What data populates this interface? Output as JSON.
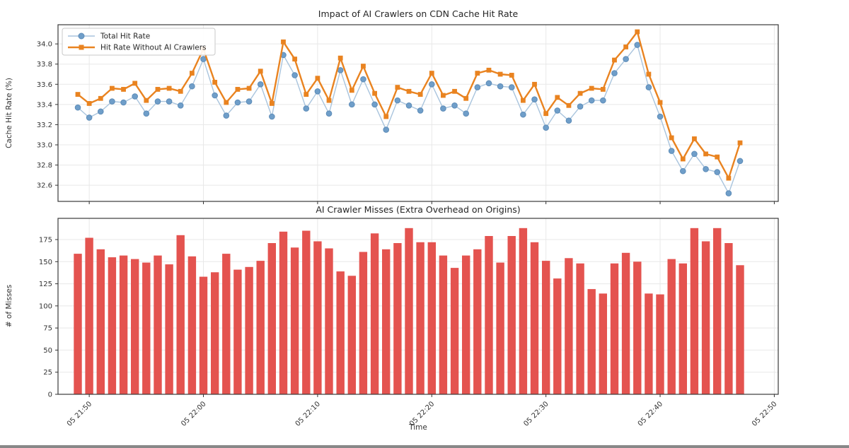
{
  "figure": {
    "colors": {
      "total_line": "#a9c4dd",
      "total_marker": "#6f9ec9",
      "without_line": "#e98320",
      "bar": "#e4534f",
      "grid": "#e8e8e8",
      "spine": "#3a3a3a",
      "tick": "#333333"
    }
  },
  "chart_data": [
    {
      "type": "line",
      "title": "Impact of AI Crawlers on CDN Cache Hit Rate",
      "ylabel": "Cache Hit Rate (%)",
      "grid": true,
      "legend_position": "upper-left",
      "ylim": [
        32.44,
        34.19
      ],
      "yticks": [
        34.0,
        33.8,
        33.6,
        33.4,
        33.2,
        33.0,
        32.8,
        32.6
      ],
      "xtick_labels": [
        "05 21:50",
        "05 22:00",
        "05 22:10",
        "05 22:20",
        "05 22:30",
        "05 22:40",
        "05 22:50"
      ],
      "xtick_minute_index": [
        1,
        11,
        21,
        31,
        41,
        51,
        61
      ],
      "x_times": [
        "05 21:49",
        "05 21:50",
        "05 21:51",
        "05 21:52",
        "05 21:53",
        "05 21:54",
        "05 21:55",
        "05 21:56",
        "05 21:57",
        "05 21:58",
        "05 21:59",
        "05 22:00",
        "05 22:01",
        "05 22:02",
        "05 22:03",
        "05 22:04",
        "05 22:05",
        "05 22:06",
        "05 22:07",
        "05 22:08",
        "05 22:09",
        "05 22:10",
        "05 22:11",
        "05 22:12",
        "05 22:13",
        "05 22:14",
        "05 22:15",
        "05 22:16",
        "05 22:17",
        "05 22:18",
        "05 22:19",
        "05 22:20",
        "05 22:21",
        "05 22:22",
        "05 22:23",
        "05 22:24",
        "05 22:25",
        "05 22:26",
        "05 22:27",
        "05 22:28",
        "05 22:29",
        "05 22:30",
        "05 22:31",
        "05 22:32",
        "05 22:33",
        "05 22:34",
        "05 22:35",
        "05 22:36",
        "05 22:37",
        "05 22:38",
        "05 22:39",
        "05 22:40",
        "05 22:41",
        "05 22:42",
        "05 22:43",
        "05 22:44",
        "05 22:45",
        "05 22:46",
        "05 22:47"
      ],
      "series": [
        {
          "name": "Total Hit Rate",
          "marker": "circle",
          "values": [
            33.37,
            33.27,
            33.33,
            33.43,
            33.42,
            33.48,
            33.31,
            33.43,
            33.43,
            33.39,
            33.58,
            33.85,
            33.49,
            33.29,
            33.42,
            33.43,
            33.6,
            33.28,
            33.89,
            33.69,
            33.36,
            33.53,
            33.31,
            33.74,
            33.4,
            33.65,
            33.4,
            33.15,
            33.44,
            33.39,
            33.34,
            33.6,
            33.36,
            33.39,
            33.31,
            33.57,
            33.61,
            33.58,
            33.57,
            33.3,
            33.45,
            33.17,
            33.34,
            33.24,
            33.38,
            33.44,
            33.44,
            33.71,
            33.85,
            33.99,
            33.57,
            33.28,
            32.94,
            32.74,
            32.91,
            32.76,
            32.73,
            32.52,
            32.84
          ]
        },
        {
          "name": "Hit Rate Without AI Crawlers",
          "marker": "square",
          "values": [
            33.5,
            33.41,
            33.46,
            33.56,
            33.55,
            33.61,
            33.44,
            33.55,
            33.56,
            33.53,
            33.71,
            33.95,
            33.62,
            33.42,
            33.55,
            33.56,
            33.73,
            33.41,
            34.02,
            33.85,
            33.5,
            33.66,
            33.44,
            33.86,
            33.54,
            33.78,
            33.51,
            33.28,
            33.57,
            33.53,
            33.5,
            33.71,
            33.49,
            33.53,
            33.46,
            33.71,
            33.74,
            33.7,
            33.69,
            33.44,
            33.6,
            33.31,
            33.47,
            33.39,
            33.51,
            33.56,
            33.55,
            33.84,
            33.97,
            34.12,
            33.7,
            33.42,
            33.07,
            32.86,
            33.06,
            32.91,
            32.88,
            32.67,
            33.02
          ]
        }
      ]
    },
    {
      "type": "bar",
      "title": "AI Crawler Misses (Extra Overhead on Origins)",
      "ylabel": "# of Misses",
      "xlabel": "Time",
      "grid": true,
      "ylim": [
        0,
        199
      ],
      "yticks": [
        0,
        25,
        50,
        75,
        100,
        125,
        150,
        175
      ],
      "xtick_labels": [
        "05 21:50",
        "05 22:00",
        "05 22:10",
        "05 22:20",
        "05 22:30",
        "05 22:40",
        "05 22:50"
      ],
      "xtick_minute_index": [
        1,
        11,
        21,
        31,
        41,
        51,
        61
      ],
      "x_times": [
        "05 21:49",
        "05 21:50",
        "05 21:51",
        "05 21:52",
        "05 21:53",
        "05 21:54",
        "05 21:55",
        "05 21:56",
        "05 21:57",
        "05 21:58",
        "05 21:59",
        "05 22:00",
        "05 22:01",
        "05 22:02",
        "05 22:03",
        "05 22:04",
        "05 22:05",
        "05 22:06",
        "05 22:07",
        "05 22:08",
        "05 22:09",
        "05 22:10",
        "05 22:11",
        "05 22:12",
        "05 22:13",
        "05 22:14",
        "05 22:15",
        "05 22:16",
        "05 22:17",
        "05 22:18",
        "05 22:19",
        "05 22:20",
        "05 22:21",
        "05 22:22",
        "05 22:23",
        "05 22:24",
        "05 22:25",
        "05 22:26",
        "05 22:27",
        "05 22:28",
        "05 22:29",
        "05 22:30",
        "05 22:31",
        "05 22:32",
        "05 22:33",
        "05 22:34",
        "05 22:35",
        "05 22:36",
        "05 22:37",
        "05 22:38",
        "05 22:39",
        "05 22:40",
        "05 22:41",
        "05 22:42",
        "05 22:43",
        "05 22:44",
        "05 22:45",
        "05 22:46",
        "05 22:47"
      ],
      "values": [
        159,
        177,
        164,
        155,
        157,
        153,
        149,
        157,
        147,
        180,
        156,
        133,
        138,
        159,
        141,
        144,
        151,
        171,
        184,
        166,
        185,
        173,
        165,
        139,
        134,
        161,
        182,
        164,
        171,
        188,
        172,
        172,
        157,
        143,
        157,
        164,
        179,
        149,
        179,
        188,
        172,
        151,
        131,
        154,
        148,
        119,
        114,
        148,
        160,
        150,
        114,
        113,
        153,
        148,
        188,
        173,
        188,
        171,
        146
      ]
    }
  ]
}
